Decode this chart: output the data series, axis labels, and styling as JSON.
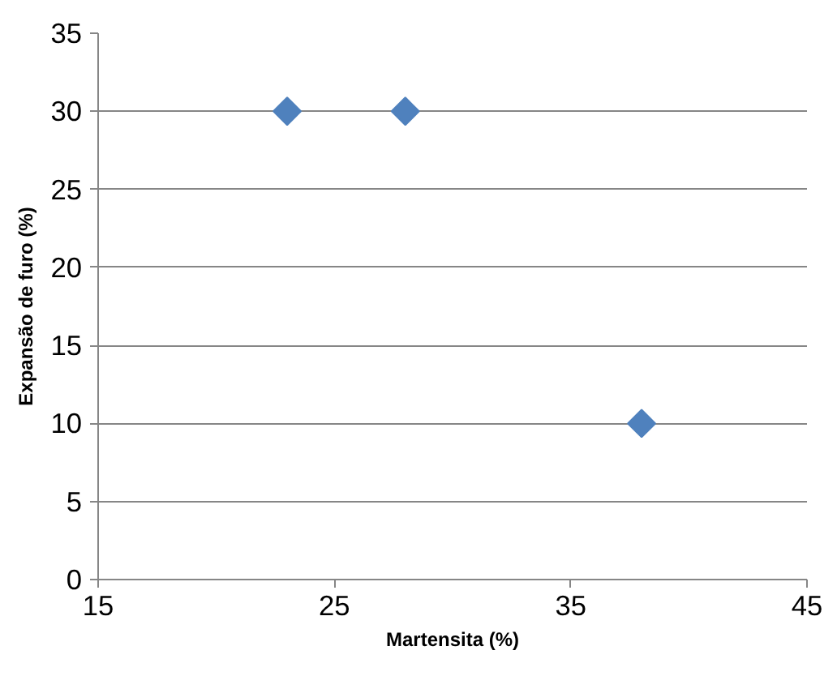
{
  "chart_data": {
    "type": "scatter",
    "xlabel": "Martensita (%)",
    "ylabel": "Expansão de furo (%)",
    "x": [
      23,
      28,
      38
    ],
    "values": [
      30,
      30,
      10
    ],
    "color": "#4f81bd",
    "marker": "diamond",
    "xlim": [
      15,
      45
    ],
    "xticks": [
      15,
      25,
      35,
      45
    ],
    "ylim": [
      0,
      35
    ],
    "yticks": [
      0,
      5,
      10,
      15,
      20,
      25,
      30,
      35
    ],
    "grid": "y"
  }
}
